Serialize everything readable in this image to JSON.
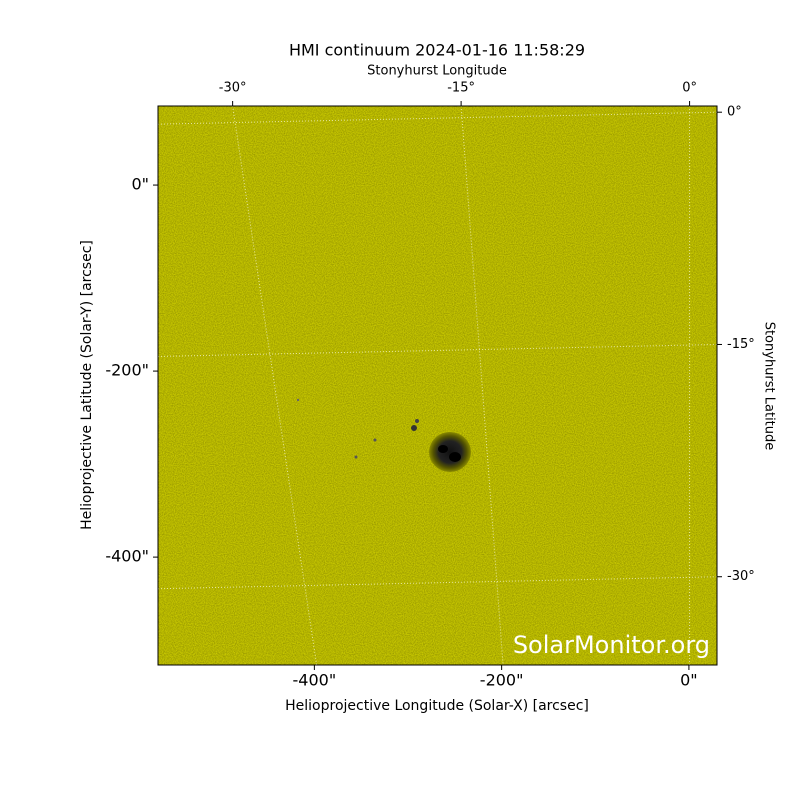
{
  "chart_data": {
    "type": "image",
    "title": "HMI continuum 2024-01-16 11:58:29",
    "xlabel": "Helioprojective Longitude (Solar-X) [arcsec]",
    "ylabel": "Helioprojective Latitude (Solar-Y) [arcsec]",
    "x2label": "Stonyhurst Longitude",
    "y2label": "Stonyhurst Latitude",
    "watermark": "SolarMonitor.org",
    "color": "#c9c900",
    "xlim": [
      -567,
      30
    ],
    "xticks": [
      {
        "value": -400,
        "label": "-400\""
      },
      {
        "value": -200,
        "label": "-200\""
      },
      {
        "value": 0,
        "label": "0\""
      }
    ],
    "ylim": [
      -516,
      85
    ],
    "yticks": [
      {
        "value": 0,
        "label": "0\""
      },
      {
        "value": -200,
        "label": "-200\""
      },
      {
        "value": -400,
        "label": "-400\""
      }
    ],
    "x2lim": [
      -34.9,
      1.8
    ],
    "x2ticks": [
      {
        "value": -30,
        "label": "-30°"
      },
      {
        "value": -15,
        "label": "-15°"
      },
      {
        "value": 0,
        "label": "0°"
      }
    ],
    "y2lim": [
      -35.7,
      0.4
    ],
    "y2ticks": [
      {
        "value": 0,
        "label": "0°"
      },
      {
        "value": -15,
        "label": "-15°"
      },
      {
        "value": -30,
        "label": "-30°"
      }
    ],
    "grid": true
  }
}
